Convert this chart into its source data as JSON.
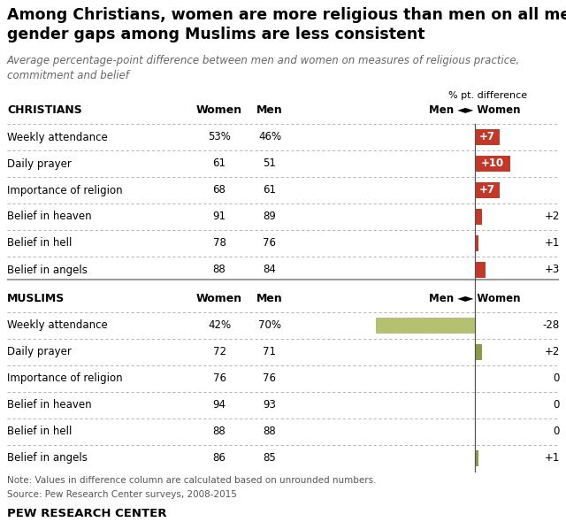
{
  "title": "Among Christians, women are more religious than men on all measures;\ngender gaps among Muslims are less consistent",
  "subtitle": "Average percentage-point difference between men and women on measures of religious practice,\ncommitment and belief",
  "note": "Note: Values in difference column are calculated based on unrounded numbers.",
  "source": "Source: Pew Research Center surveys, 2008-2015",
  "branding": "PEW RESEARCH CENTER",
  "christians": {
    "label": "CHRISTIANS",
    "rows": [
      {
        "measure": "Weekly attendance",
        "women": "53%",
        "men": "46%",
        "diff": 7
      },
      {
        "measure": "Daily prayer",
        "women": "61",
        "men": "51",
        "diff": 10
      },
      {
        "measure": "Importance of religion",
        "women": "68",
        "men": "61",
        "diff": 7
      },
      {
        "measure": "Belief in heaven",
        "women": "91",
        "men": "89",
        "diff": 2
      },
      {
        "measure": "Belief in hell",
        "women": "78",
        "men": "76",
        "diff": 1
      },
      {
        "measure": "Belief in angels",
        "women": "88",
        "men": "84",
        "diff": 3
      }
    ],
    "bar_color": "#C0392B",
    "bar_color_neg": "#C0392B"
  },
  "muslims": {
    "label": "MUSLIMS",
    "rows": [
      {
        "measure": "Weekly attendance",
        "women": "42%",
        "men": "70%",
        "diff": -28
      },
      {
        "measure": "Daily prayer",
        "women": "72",
        "men": "71",
        "diff": 2
      },
      {
        "measure": "Importance of religion",
        "women": "76",
        "men": "76",
        "diff": 0
      },
      {
        "measure": "Belief in heaven",
        "women": "94",
        "men": "93",
        "diff": 0
      },
      {
        "measure": "Belief in hell",
        "women": "88",
        "men": "88",
        "diff": 0
      },
      {
        "measure": "Belief in angels",
        "women": "86",
        "men": "85",
        "diff": 1
      }
    ],
    "bar_color": "#8B9A46",
    "bar_color_neg": "#B5C170"
  },
  "bar_max": 28,
  "title_fontsize": 12.5,
  "subtitle_fontsize": 8.5,
  "row_fontsize": 8.5,
  "note_fontsize": 7.5,
  "background_color": "#ffffff"
}
